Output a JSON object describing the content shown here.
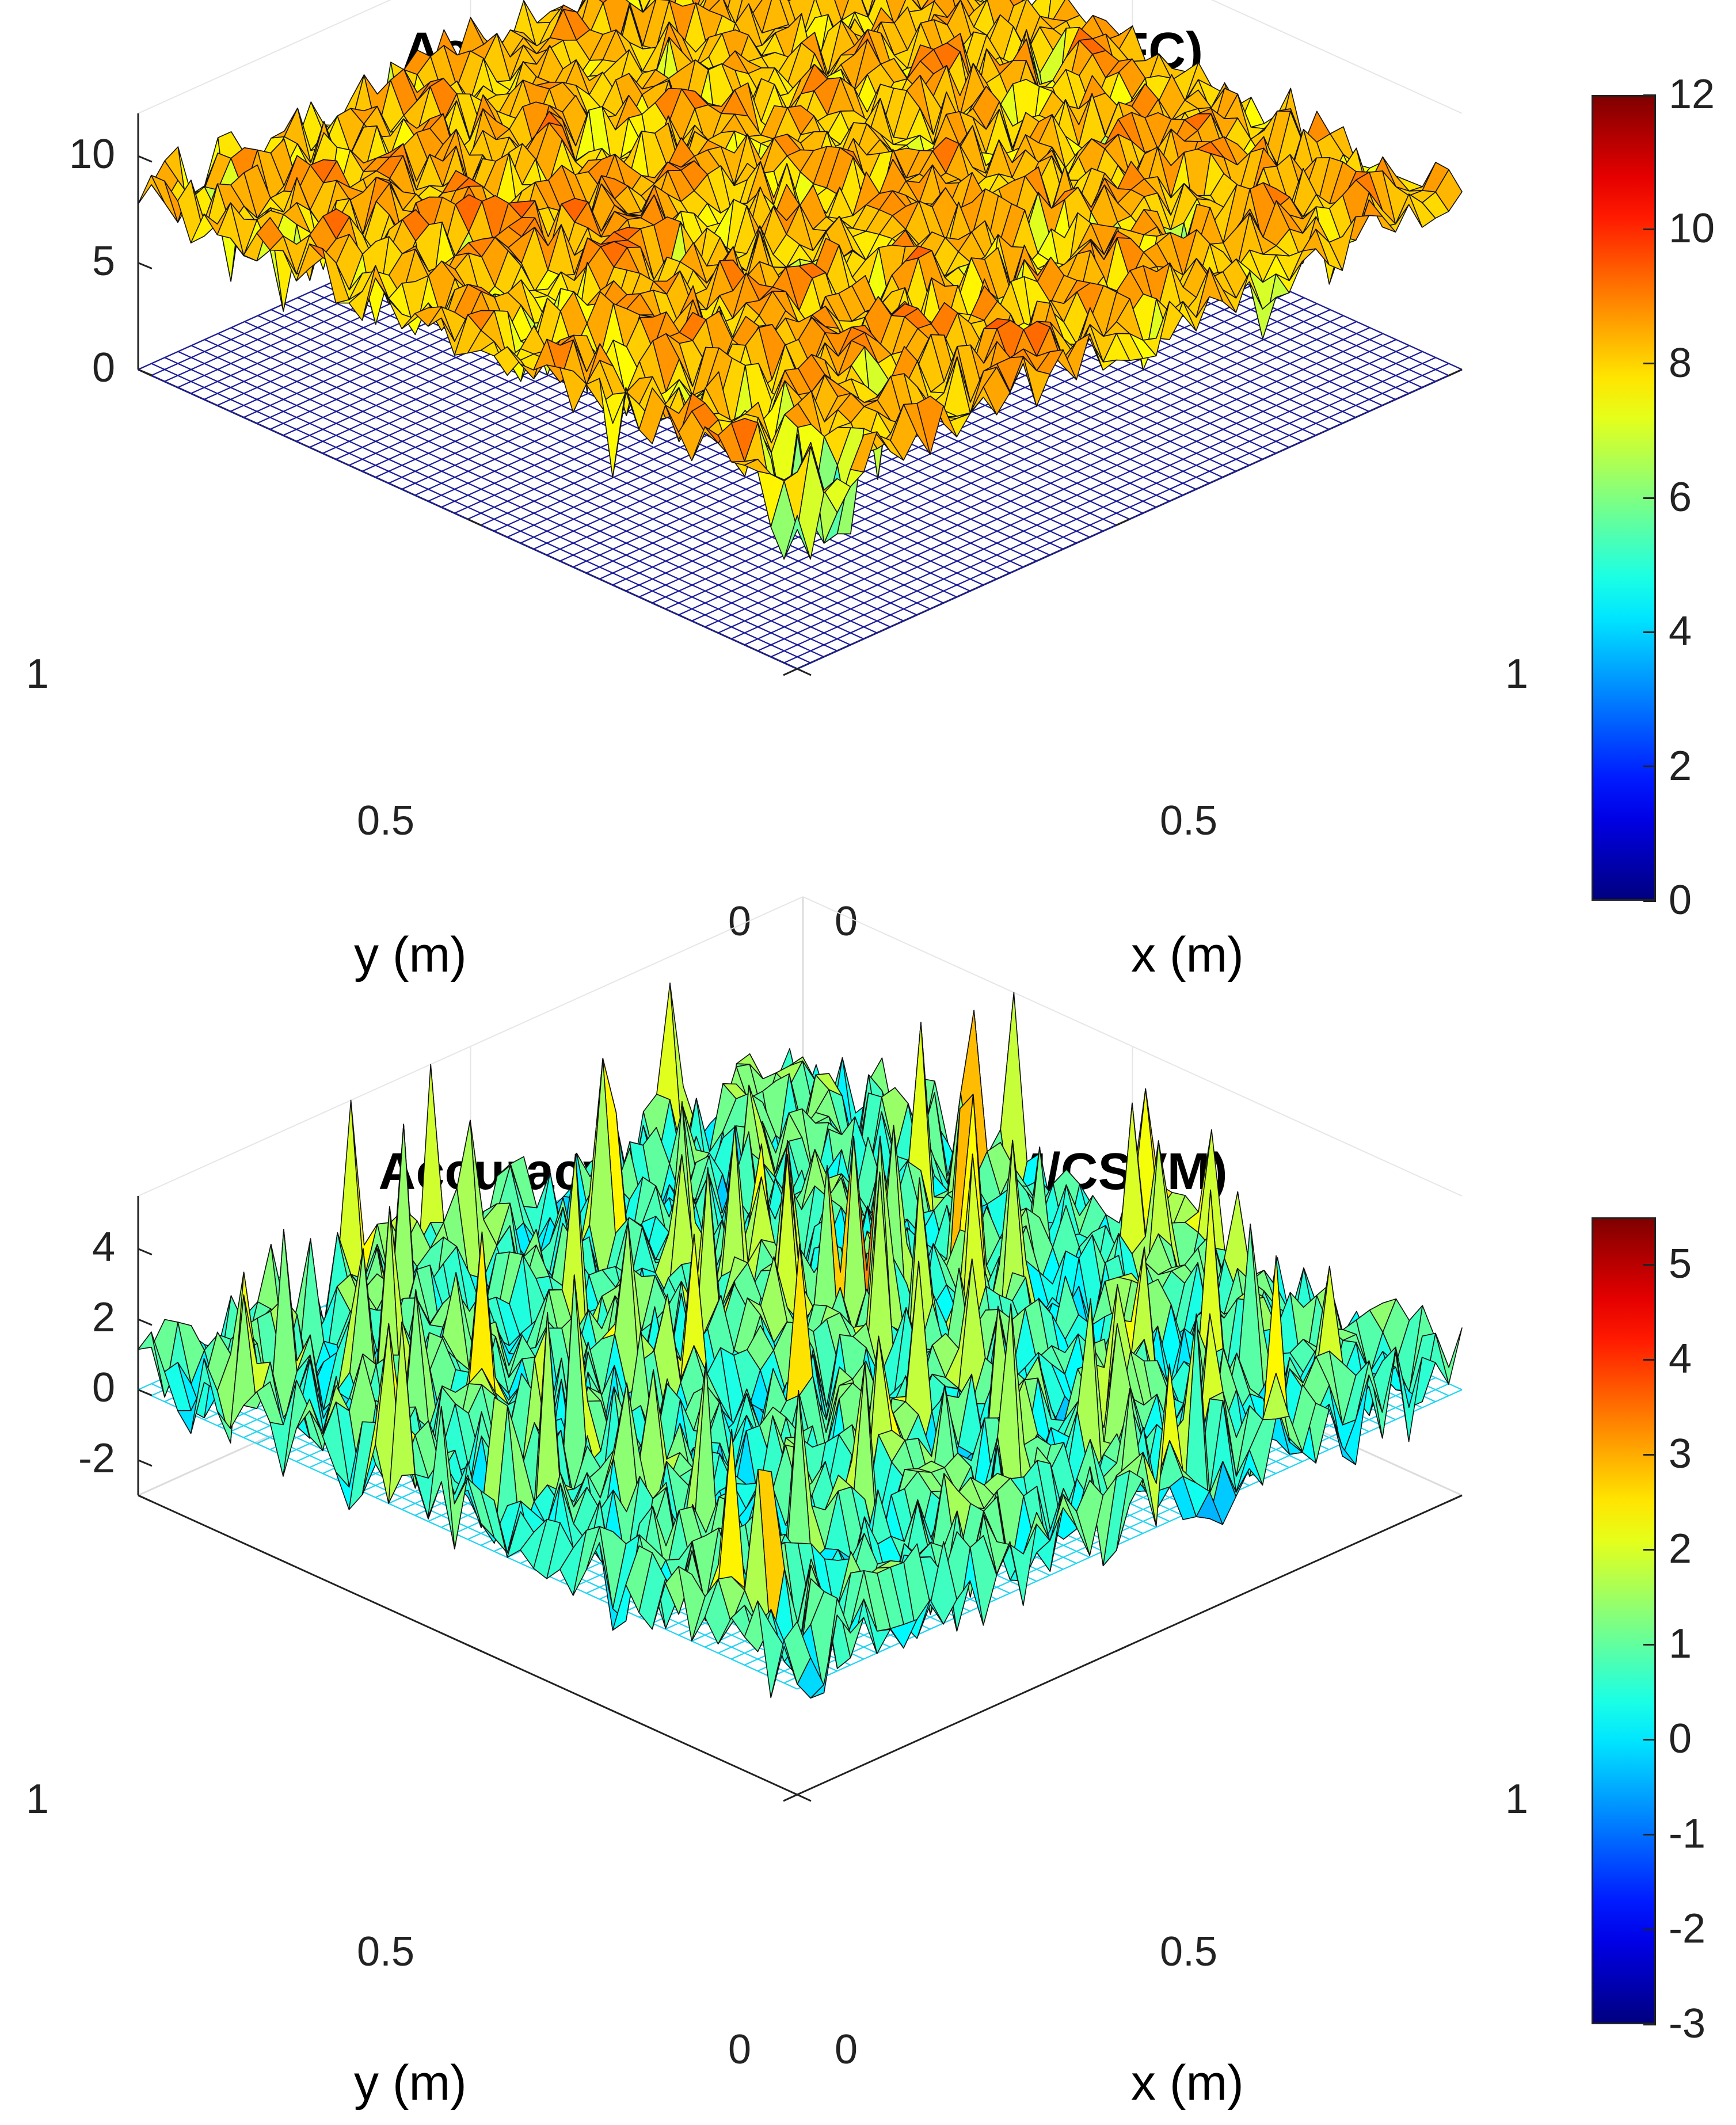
{
  "chart_data": [
    {
      "type": "surface",
      "title": "Accuracy Gain log(LS-SVM/TFC)",
      "xlabel": "x (m)",
      "ylabel": "y (m)",
      "zlabel": "",
      "xlim": [
        0,
        1
      ],
      "ylim": [
        0,
        1
      ],
      "zlim": [
        0,
        12
      ],
      "xticks": [
        "0",
        "0.5",
        "1"
      ],
      "yticks": [
        "0",
        "0.5",
        "1"
      ],
      "zticks": [
        "0",
        "5",
        "10"
      ],
      "colorbar": {
        "min": 0,
        "max": 12,
        "ticks": [
          "0",
          "2",
          "4",
          "6",
          "8",
          "10",
          "12"
        ],
        "colormap": "jet"
      },
      "series": [
        {
          "name": "log(LS-SVM/TFC) surface",
          "mean": 8.3,
          "spread": 1.3,
          "grid": 50
        },
        {
          "name": "zero plane mesh",
          "z": 0,
          "color": "#1c1c9a",
          "grid": 50
        }
      ]
    },
    {
      "type": "surface",
      "title": "Accuracy Gain log(LS-SVM/CSVM)",
      "xlabel": "x (m)",
      "ylabel": "y (m)",
      "zlabel": "",
      "xlim": [
        0,
        1
      ],
      "ylim": [
        0,
        1
      ],
      "zlim": [
        -3,
        5.5
      ],
      "xticks": [
        "0",
        "0.5",
        "1"
      ],
      "yticks": [
        "0",
        "0.5",
        "1"
      ],
      "zticks": [
        "-2",
        "0",
        "2",
        "4"
      ],
      "colorbar": {
        "min": -3,
        "max": 5.5,
        "ticks": [
          "-3",
          "-2",
          "-1",
          "0",
          "1",
          "2",
          "3",
          "4",
          "5"
        ],
        "colormap": "jet"
      },
      "series": [
        {
          "name": "log(LS-SVM/CSVM) surface",
          "mean": 0.6,
          "spread": 1.4,
          "grid": 50
        },
        {
          "name": "zero plane mesh",
          "z": 0,
          "color": "#22d4f0",
          "grid": 50
        }
      ]
    }
  ]
}
